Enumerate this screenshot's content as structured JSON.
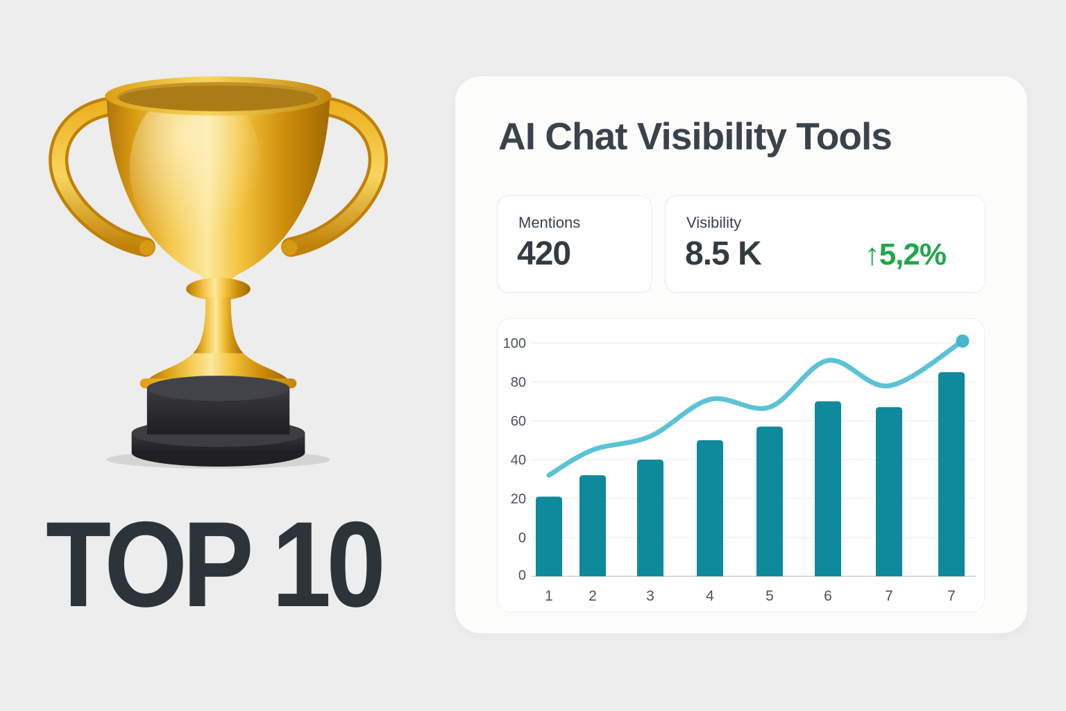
{
  "page": {
    "background_color": "#ecedec"
  },
  "hero": {
    "headline": "TOP 10",
    "headline_color": "#2c343a",
    "trophy": "gold-trophy-with-black-base"
  },
  "panel": {
    "title": "AI Chat Visibility Tools",
    "title_color": "#3a434b",
    "stats": [
      {
        "label": "Mentions",
        "value": "420"
      },
      {
        "label": "Visibility",
        "value": "8.5 K",
        "change": "↑5,2%",
        "change_color": "#21a74b"
      }
    ]
  },
  "chart_data": {
    "type": "bar",
    "title": "",
    "xlabel": "",
    "ylabel": "",
    "categories": [
      "1",
      "2",
      "3",
      "4",
      "5",
      "6",
      "7",
      "7"
    ],
    "series": [
      {
        "name": "bars",
        "type": "bar",
        "color": "#0e8a9c",
        "values": [
          21,
          32,
          40,
          50,
          57,
          70,
          67,
          85
        ]
      },
      {
        "name": "trend-line",
        "type": "line",
        "color": "#5cc3d6",
        "marker_color": "#49b6cc",
        "values": [
          32,
          45,
          52,
          71,
          67,
          91,
          78,
          101
        ]
      }
    ],
    "y_ticks": [
      "100",
      "80",
      "60",
      "40",
      "20",
      "0",
      "0"
    ],
    "ylim": [
      0,
      105
    ],
    "grid": "horizontal",
    "legend": "none",
    "tick_color": "#4a5257",
    "gridline_color": "#efefef",
    "axis_color": "#d9dadb"
  }
}
